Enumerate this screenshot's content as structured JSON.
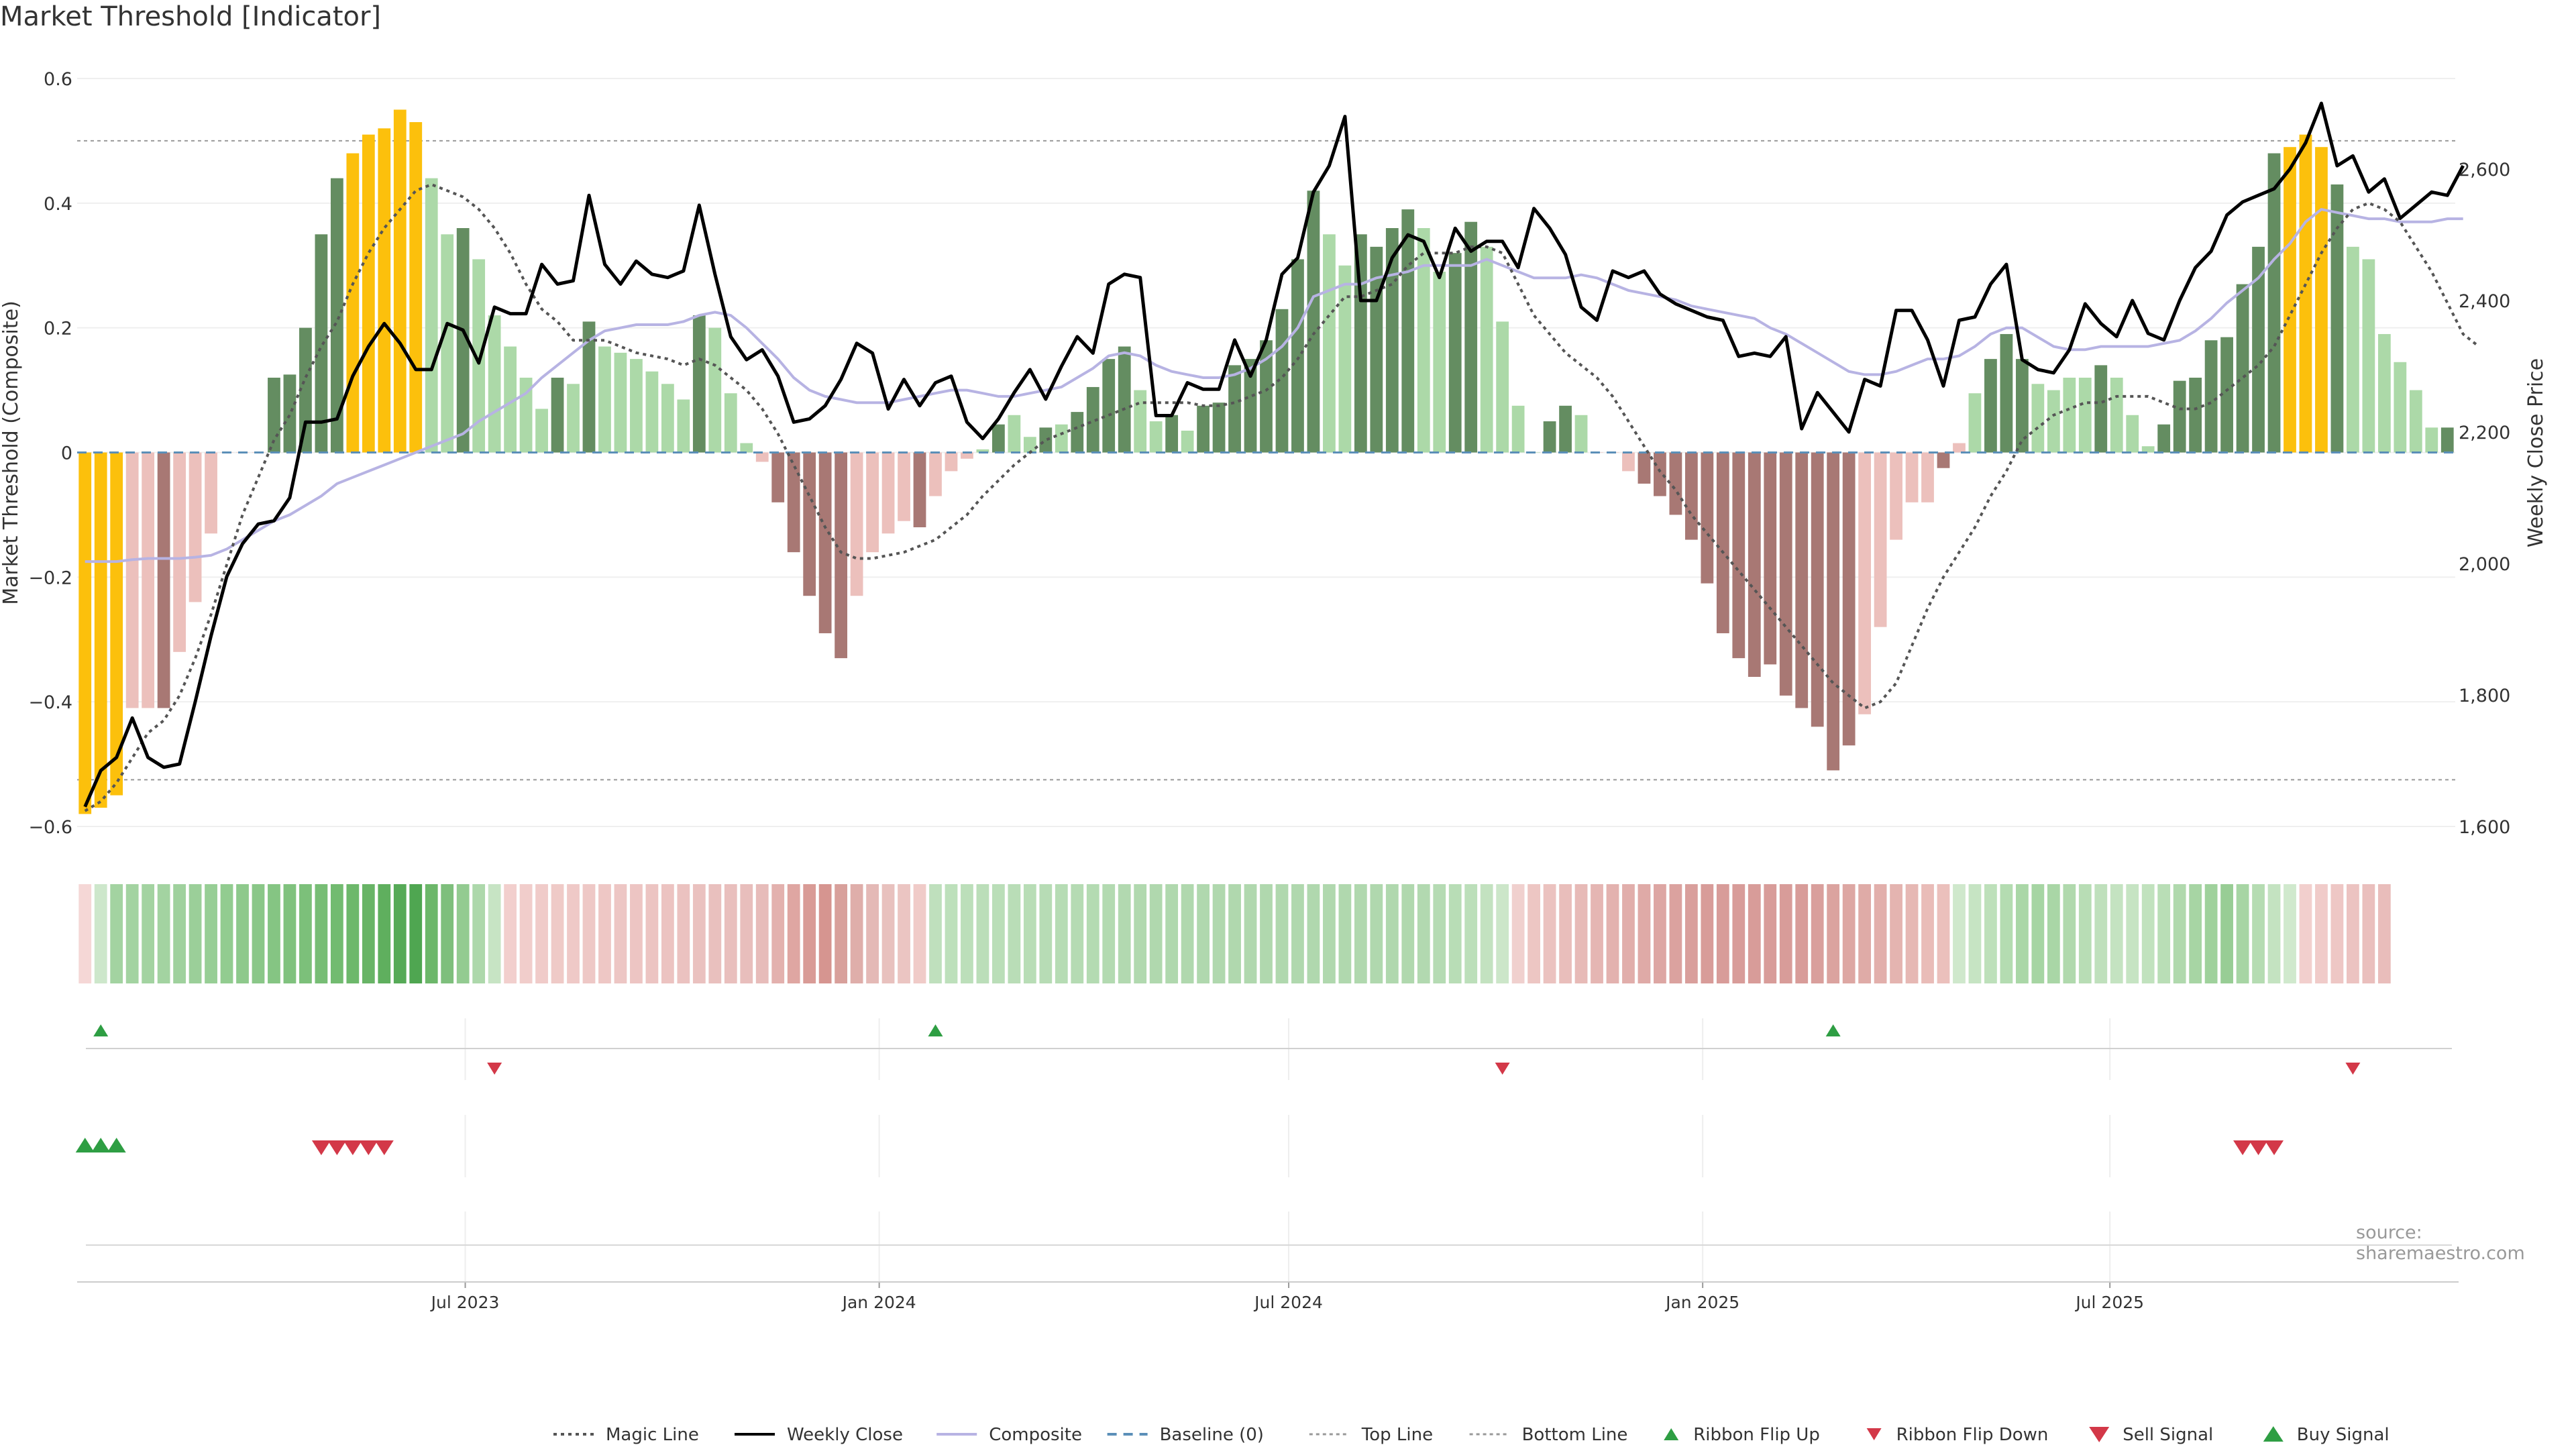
{
  "title": "Market Threshold [Indicator]",
  "source": "source: sharemaestro.com",
  "colors": {
    "strong_bull": "#648d61",
    "weak_bull": "#acd9a8",
    "strong_bear": "#a87874",
    "weak_bear": "#ecc0bc",
    "extreme": "#fcc00c",
    "weekly_close": "#000000",
    "composite": "#b7b3e3",
    "magic_line": "#555555",
    "baseline": "#5b8fb8",
    "buy": "#2e9e43",
    "sell": "#d33848"
  },
  "chart_data": {
    "type": "bar",
    "title": "Market Threshold [Indicator]",
    "ylabel": "Market Threshold (Composite)",
    "y2label": "Weekly Close Price",
    "ylim": [
      -0.6,
      0.6
    ],
    "y2lim": [
      1600,
      2730
    ],
    "yticks": [
      -0.6,
      -0.4,
      -0.2,
      0,
      0.2,
      0.4,
      0.6
    ],
    "yticklabels": [
      "−0.6",
      "−0.4",
      "−0.2",
      "0",
      "0.2",
      "0.4",
      "0.6"
    ],
    "y2ticks": [
      1600,
      1800,
      2000,
      2200,
      2400,
      2600
    ],
    "y2ticklabels": [
      "1,600",
      "1,800",
      "2,000",
      "2,200",
      "2,400",
      "2,600"
    ],
    "x_start": "2023-01-13",
    "x_interval_days": 7,
    "xticks": [
      "2023-07-01",
      "2024-01-01",
      "2024-07-01",
      "2025-01-01",
      "2025-07-01"
    ],
    "xticklabels": [
      "Jul 2023",
      "Jan 2024",
      "Jul 2024",
      "Jan 2025",
      "Jul 2025"
    ],
    "top_line": 0.5,
    "bottom_line": -0.525,
    "composite_values": [
      -0.58,
      -0.57,
      -0.55,
      -0.41,
      -0.41,
      -0.41,
      -0.32,
      -0.24,
      -0.13,
      0,
      0,
      0,
      0.12,
      0.125,
      0.2,
      0.35,
      0.44,
      0.48,
      0.51,
      0.52,
      0.55,
      0.53,
      0.44,
      0.35,
      0.36,
      0.31,
      0.22,
      0.17,
      0.12,
      0.07,
      0.12,
      0.11,
      0.21,
      0.17,
      0.16,
      0.15,
      0.13,
      0.11,
      0.085,
      0.22,
      0.2,
      0.095,
      0.015,
      -0.015,
      -0.08,
      -0.16,
      -0.23,
      -0.29,
      -0.33,
      -0.23,
      -0.16,
      -0.13,
      -0.11,
      -0.12,
      -0.07,
      -0.03,
      -0.01,
      0.005,
      0.045,
      0.06,
      0.025,
      0.04,
      0.045,
      0.065,
      0.105,
      0.15,
      0.17,
      0.1,
      0.05,
      0.06,
      0.035,
      0.075,
      0.08,
      0.14,
      0.15,
      0.18,
      0.23,
      0.31,
      0.42,
      0.35,
      0.3,
      0.35,
      0.33,
      0.36,
      0.39,
      0.36,
      0.29,
      0.32,
      0.37,
      0.33,
      0.21,
      0.075,
      0,
      0.05,
      0.075,
      0.06,
      0,
      0,
      -0.03,
      -0.05,
      -0.07,
      -0.1,
      -0.14,
      -0.21,
      -0.29,
      -0.33,
      -0.36,
      -0.34,
      -0.39,
      -0.41,
      -0.44,
      -0.51,
      -0.47,
      -0.42,
      -0.28,
      -0.14,
      -0.08,
      -0.08,
      -0.025,
      0.015,
      0.095,
      0.15,
      0.19,
      0.15,
      0.11,
      0.1,
      0.12,
      0.12,
      0.14,
      0.12,
      0.06,
      0.01,
      0.045,
      0.115,
      0.12,
      0.18,
      0.185,
      0.27,
      0.33,
      0.48,
      0.49,
      0.51,
      0.49,
      0.43,
      0.33,
      0.31,
      0.19,
      0.145,
      0.1,
      0.04,
      0.04
    ],
    "bar_categories": [
      "extreme",
      "extreme",
      "extreme",
      "weak_bear",
      "weak_bear",
      "strong_bear",
      "weak_bear",
      "weak_bear",
      "weak_bear",
      "weak_bear",
      "weak_bear",
      "weak_bear",
      "strong_bull",
      "strong_bull",
      "strong_bull",
      "strong_bull",
      "strong_bull",
      "extreme",
      "extreme",
      "extreme",
      "extreme",
      "extreme",
      "weak_bull",
      "weak_bull",
      "strong_bull",
      "weak_bull",
      "weak_bull",
      "weak_bull",
      "weak_bull",
      "weak_bull",
      "strong_bull",
      "weak_bull",
      "strong_bull",
      "weak_bull",
      "weak_bull",
      "weak_bull",
      "weak_bull",
      "weak_bull",
      "weak_bull",
      "strong_bull",
      "weak_bull",
      "weak_bull",
      "weak_bull",
      "weak_bear",
      "strong_bear",
      "strong_bear",
      "strong_bear",
      "strong_bear",
      "strong_bear",
      "weak_bear",
      "weak_bear",
      "weak_bear",
      "weak_bear",
      "strong_bear",
      "weak_bear",
      "weak_bear",
      "weak_bear",
      "weak_bull",
      "strong_bull",
      "weak_bull",
      "weak_bull",
      "strong_bull",
      "weak_bull",
      "strong_bull",
      "strong_bull",
      "strong_bull",
      "strong_bull",
      "weak_bull",
      "weak_bull",
      "strong_bull",
      "weak_bull",
      "strong_bull",
      "strong_bull",
      "strong_bull",
      "strong_bull",
      "strong_bull",
      "strong_bull",
      "strong_bull",
      "strong_bull",
      "weak_bull",
      "weak_bull",
      "strong_bull",
      "strong_bull",
      "strong_bull",
      "strong_bull",
      "weak_bull",
      "weak_bull",
      "strong_bull",
      "strong_bull",
      "weak_bull",
      "weak_bull",
      "weak_bull",
      "weak_bull",
      "strong_bull",
      "strong_bull",
      "weak_bull",
      "weak_bear",
      "weak_bear",
      "weak_bear",
      "strong_bear",
      "strong_bear",
      "strong_bear",
      "strong_bear",
      "strong_bear",
      "strong_bear",
      "strong_bear",
      "strong_bear",
      "strong_bear",
      "strong_bear",
      "strong_bear",
      "strong_bear",
      "strong_bear",
      "strong_bear",
      "weak_bear",
      "weak_bear",
      "weak_bear",
      "weak_bear",
      "weak_bear",
      "strong_bear",
      "weak_bear",
      "weak_bull",
      "strong_bull",
      "strong_bull",
      "strong_bull",
      "weak_bull",
      "weak_bull",
      "weak_bull",
      "weak_bull",
      "strong_bull",
      "weak_bull",
      "weak_bull",
      "weak_bull",
      "strong_bull",
      "strong_bull",
      "strong_bull",
      "strong_bull",
      "strong_bull",
      "strong_bull",
      "strong_bull",
      "strong_bull",
      "extreme",
      "extreme",
      "extreme",
      "strong_bull",
      "weak_bull",
      "weak_bull",
      "weak_bull",
      "weak_bull",
      "weak_bull",
      "weak_bull",
      "strong_bull"
    ],
    "weekly_close": [
      1630,
      1685,
      1705,
      1765,
      1705,
      1690,
      1695,
      1790,
      1890,
      1980,
      2030,
      2060,
      2065,
      2100,
      2215,
      2215,
      2220,
      2285,
      2330,
      2365,
      2335,
      2295,
      2295,
      2365,
      2355,
      2305,
      2390,
      2380,
      2380,
      2455,
      2425,
      2430,
      2560,
      2455,
      2425,
      2460,
      2440,
      2435,
      2445,
      2545,
      2440,
      2345,
      2310,
      2325,
      2285,
      2215,
      2220,
      2240,
      2280,
      2335,
      2320,
      2235,
      2280,
      2240,
      2275,
      2285,
      2215,
      2190,
      2220,
      2260,
      2295,
      2250,
      2300,
      2345,
      2320,
      2425,
      2440,
      2435,
      2225,
      2225,
      2275,
      2265,
      2265,
      2340,
      2285,
      2340,
      2440,
      2465,
      2565,
      2605,
      2680,
      2400,
      2400,
      2465,
      2500,
      2490,
      2435,
      2510,
      2475,
      2490,
      2490,
      2450,
      2540,
      2510,
      2470,
      2390,
      2370,
      2445,
      2435,
      2445,
      2410,
      2395,
      2385,
      2375,
      2370,
      2315,
      2320,
      2315,
      2345,
      2205,
      2260,
      2230,
      2200,
      2280,
      2270,
      2385,
      2385,
      2340,
      2270,
      2370,
      2375,
      2425,
      2455,
      2310,
      2295,
      2290,
      2325,
      2395,
      2365,
      2345,
      2400,
      2350,
      2340,
      2400,
      2450,
      2475,
      2530,
      2550,
      2560,
      2570,
      2600,
      2640,
      2700,
      2605,
      2620,
      2565,
      2585,
      2525,
      2545,
      2565,
      2560,
      2605
    ],
    "magic_line": [
      -0.575,
      -0.56,
      -0.53,
      -0.49,
      -0.45,
      -0.43,
      -0.39,
      -0.33,
      -0.26,
      -0.18,
      -0.1,
      -0.04,
      0.02,
      0.06,
      0.12,
      0.17,
      0.21,
      0.27,
      0.32,
      0.36,
      0.39,
      0.42,
      0.43,
      0.42,
      0.41,
      0.39,
      0.36,
      0.32,
      0.27,
      0.23,
      0.21,
      0.18,
      0.18,
      0.18,
      0.17,
      0.16,
      0.155,
      0.15,
      0.14,
      0.15,
      0.14,
      0.12,
      0.1,
      0.07,
      0.03,
      -0.02,
      -0.07,
      -0.12,
      -0.16,
      -0.17,
      -0.17,
      -0.165,
      -0.16,
      -0.15,
      -0.14,
      -0.12,
      -0.1,
      -0.07,
      -0.045,
      -0.02,
      0,
      0.02,
      0.03,
      0.04,
      0.05,
      0.06,
      0.07,
      0.08,
      0.08,
      0.08,
      0.08,
      0.075,
      0.075,
      0.08,
      0.09,
      0.1,
      0.12,
      0.15,
      0.19,
      0.22,
      0.25,
      0.25,
      0.26,
      0.27,
      0.3,
      0.32,
      0.32,
      0.32,
      0.33,
      0.33,
      0.32,
      0.27,
      0.22,
      0.19,
      0.16,
      0.14,
      0.12,
      0.09,
      0.05,
      0.01,
      -0.03,
      -0.06,
      -0.1,
      -0.13,
      -0.16,
      -0.19,
      -0.22,
      -0.25,
      -0.28,
      -0.31,
      -0.34,
      -0.37,
      -0.39,
      -0.41,
      -0.4,
      -0.37,
      -0.31,
      -0.25,
      -0.2,
      -0.16,
      -0.12,
      -0.07,
      -0.03,
      0.02,
      0.04,
      0.06,
      0.07,
      0.08,
      0.08,
      0.09,
      0.09,
      0.09,
      0.08,
      0.07,
      0.07,
      0.08,
      0.1,
      0.12,
      0.14,
      0.17,
      0.22,
      0.27,
      0.32,
      0.36,
      0.39,
      0.4,
      0.39,
      0.37,
      0.33,
      0.29,
      0.24,
      0.19,
      0.17
    ],
    "composite_line": [
      -0.175,
      -0.175,
      -0.175,
      -0.172,
      -0.17,
      -0.17,
      -0.17,
      -0.168,
      -0.165,
      -0.155,
      -0.14,
      -0.125,
      -0.11,
      -0.1,
      -0.085,
      -0.07,
      -0.05,
      -0.04,
      -0.03,
      -0.02,
      -0.01,
      0,
      0.01,
      0.02,
      0.03,
      0.05,
      0.065,
      0.08,
      0.095,
      0.12,
      0.14,
      0.16,
      0.18,
      0.195,
      0.2,
      0.205,
      0.205,
      0.205,
      0.21,
      0.22,
      0.225,
      0.22,
      0.2,
      0.175,
      0.15,
      0.12,
      0.1,
      0.09,
      0.085,
      0.08,
      0.08,
      0.08,
      0.085,
      0.09,
      0.095,
      0.1,
      0.1,
      0.095,
      0.09,
      0.09,
      0.095,
      0.1,
      0.105,
      0.12,
      0.135,
      0.155,
      0.16,
      0.155,
      0.14,
      0.13,
      0.125,
      0.12,
      0.12,
      0.125,
      0.135,
      0.15,
      0.17,
      0.2,
      0.25,
      0.26,
      0.27,
      0.27,
      0.28,
      0.285,
      0.29,
      0.3,
      0.3,
      0.3,
      0.3,
      0.31,
      0.3,
      0.29,
      0.28,
      0.28,
      0.28,
      0.285,
      0.28,
      0.27,
      0.26,
      0.255,
      0.25,
      0.245,
      0.235,
      0.23,
      0.225,
      0.22,
      0.215,
      0.2,
      0.19,
      0.175,
      0.16,
      0.145,
      0.13,
      0.125,
      0.125,
      0.13,
      0.14,
      0.15,
      0.15,
      0.155,
      0.17,
      0.19,
      0.2,
      0.2,
      0.185,
      0.17,
      0.165,
      0.165,
      0.17,
      0.17,
      0.17,
      0.17,
      0.175,
      0.18,
      0.195,
      0.215,
      0.24,
      0.26,
      0.28,
      0.31,
      0.335,
      0.37,
      0.39,
      0.385,
      0.38,
      0.375,
      0.375,
      0.37,
      0.37,
      0.37,
      0.375,
      0.375
    ],
    "ribbon_band": [
      "#f5d7d6",
      "#cde7cb",
      "#a3d3a1",
      "#a3d3a1",
      "#a3d3a1",
      "#a3d3a1",
      "#9fd19d",
      "#9bcf99",
      "#97ce95",
      "#92cc90",
      "#8ec98c",
      "#8ac788",
      "#85c583",
      "#80c27e",
      "#7cc07a",
      "#77bd75",
      "#72bb70",
      "#6db86b",
      "#68b466",
      "#5faf5e",
      "#56aa57",
      "#4fa651",
      "#6cb76a",
      "#7ebf7c",
      "#93cb91",
      "#add8ab",
      "#c7e4c4",
      "#f2cfcd",
      "#f1cdcb",
      "#f0cbc9",
      "#efcac7",
      "#efc9c7",
      "#eec8c6",
      "#eec7c5",
      "#edc6c4",
      "#edc5c3",
      "#ecc4c2",
      "#ecc3c1",
      "#ebc2c0",
      "#eac1bf",
      "#e9c0be",
      "#e9bfbd",
      "#e8bebc",
      "#e7bcba",
      "#e3b1ae",
      "#dfa6a2",
      "#d99b96",
      "#d69590",
      "#d8a09b",
      "#dfaeaa",
      "#e4b9b6",
      "#e8c1be",
      "#ebc5c2",
      "#f0cbc8",
      "#bfe0bd",
      "#bde0bb",
      "#bcdfba",
      "#bbdeb9",
      "#badeb8",
      "#b9ddb7",
      "#b8ddb6",
      "#b7dcb5",
      "#b6dcb4",
      "#b5dbb3",
      "#b4dbb2",
      "#b3dab1",
      "#b2d9b0",
      "#b1d9af",
      "#b0d8ae",
      "#b0d8ae",
      "#b0d8ae",
      "#b0d8ae",
      "#b0d8ae",
      "#b0d8ae",
      "#b0d8ae",
      "#b0d8ae",
      "#b0d8ae",
      "#b0d8ae",
      "#b0d8ae",
      "#b0d8ae",
      "#b0d8ae",
      "#b0d8ae",
      "#b0d8ae",
      "#b0d8ae",
      "#b0d8ae",
      "#b2d9b0",
      "#b5dbb3",
      "#b8ddb6",
      "#bcdfba",
      "#c3e2c0",
      "#cce6c9",
      "#f0d0ce",
      "#edc6c3",
      "#ebc2bf",
      "#e9bebb",
      "#e7bab7",
      "#e5b6b3",
      "#e3b2af",
      "#e1aeab",
      "#dfaaa7",
      "#dda6a3",
      "#dba29f",
      "#d99f9c",
      "#d89c99",
      "#d89c99",
      "#d89c99",
      "#d89c99",
      "#d89c99",
      "#d89c99",
      "#d89c99",
      "#d99f9c",
      "#dba39f",
      "#dda7a3",
      "#dfaba7",
      "#e2afab",
      "#e4b4b0",
      "#e6b8b4",
      "#e9bcb8",
      "#ebc0bc",
      "#cfe8cc",
      "#c6e4c3",
      "#bde0ba",
      "#b4dcb1",
      "#aad7a7",
      "#a6d5a3",
      "#a9d6a6",
      "#b0d9ad",
      "#b8ddb5",
      "#bfe0bc",
      "#c4e3c1",
      "#c6e4c3",
      "#c1e2be",
      "#b9deb6",
      "#b0d9ad",
      "#a7d5a4",
      "#9fd19c",
      "#98cd95",
      "#a7d5a4",
      "#b5dcb2",
      "#c4e3c1",
      "#d0e9cd",
      "#f2cfcd",
      "#f0cbc9",
      "#eec7c5",
      "#ecc3c1",
      "#eabfbd",
      "#e9bdbb"
    ],
    "ribbon_flip_up": [
      1,
      54,
      111
    ],
    "ribbon_flip_down": [
      26,
      90,
      144
    ],
    "buy_signal": [
      0,
      1,
      2
    ],
    "sell_signal": [
      15,
      16,
      17,
      18,
      19,
      137,
      138,
      139
    ],
    "legend": [
      {
        "name": "Magic Line",
        "style": "dotted"
      },
      {
        "name": "Weekly Close",
        "style": "solid"
      },
      {
        "name": "Composite",
        "style": "composite"
      },
      {
        "name": "Baseline (0)",
        "style": "dashed"
      },
      {
        "name": "Top Line",
        "style": "dotted-light"
      },
      {
        "name": "Bottom Line",
        "style": "dotted-light"
      },
      {
        "name": "Ribbon Flip Up",
        "style": "up-small"
      },
      {
        "name": "Ribbon Flip Down",
        "style": "down-small"
      },
      {
        "name": "Sell Signal",
        "style": "down-large"
      },
      {
        "name": "Buy Signal",
        "style": "up-large"
      }
    ],
    "legend_placement": "bottom-center",
    "grid": true
  }
}
